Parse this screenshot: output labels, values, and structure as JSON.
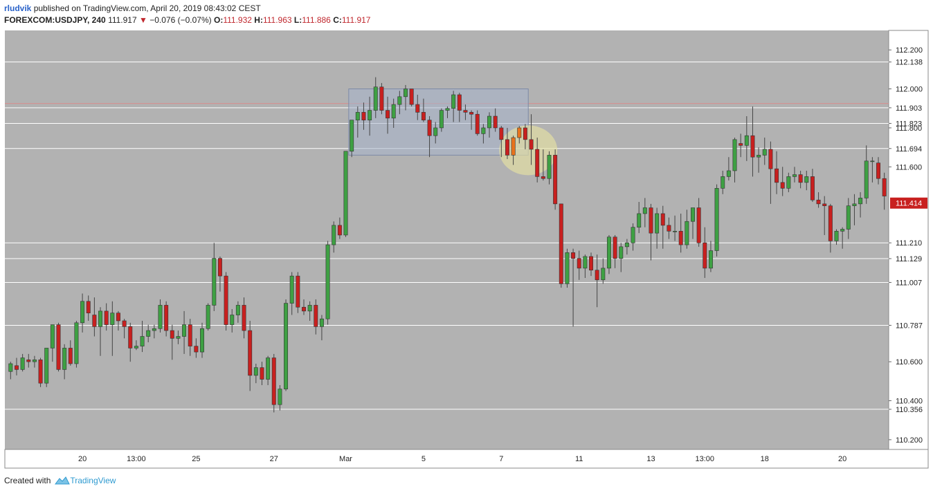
{
  "header": {
    "author": "rludvik",
    "published_text": "published on TradingView.com, April 20, 2019 08:43:02 CEST",
    "symbol": "FOREXCOM:USDJPY, 240",
    "last": "111.917",
    "change": "−0.076 (−0.07%)",
    "open_label": "O:",
    "open": "111.932",
    "high_label": "H:",
    "high": "111.963",
    "low_label": "L:",
    "low": "111.886",
    "close_label": "C:",
    "close": "111.917"
  },
  "footer": {
    "created_with": "Created with",
    "brand": "TradingView"
  },
  "colors": {
    "background": "#b2b2b2",
    "up": "#3ea043",
    "down": "#c8201f",
    "orange": "#e8731c",
    "axis_bg": "#ffffff",
    "price_tag": "#c8201f",
    "hline": "#ffffff",
    "red_hline": "#d98a8a",
    "box_fill": "#a8b5cc",
    "circle_fill": "#e6e2a3"
  },
  "chart_data": {
    "type": "candlestick",
    "ylim": [
      110.15,
      112.3
    ],
    "y_ticks": [
      "112.200",
      "112.000",
      "111.800",
      "111.600",
      "110.600",
      "110.400",
      "110.200"
    ],
    "horizontal_levels": [
      "112.138",
      "111.903",
      "111.823",
      "111.694",
      "111.210",
      "111.129",
      "111.007",
      "110.787",
      "110.356"
    ],
    "resistance_level": 111.925,
    "current_price": "111.414",
    "x_labels": [
      {
        "label": "20",
        "bar": 12
      },
      {
        "label": "13:00",
        "bar": 21
      },
      {
        "label": "25",
        "bar": 31
      },
      {
        "label": "27",
        "bar": 44
      },
      {
        "label": "Mar",
        "bar": 56
      },
      {
        "label": "5",
        "bar": 69
      },
      {
        "label": "7",
        "bar": 82
      },
      {
        "label": "11",
        "bar": 95
      },
      {
        "label": "13",
        "bar": 107
      },
      {
        "label": "13:00",
        "bar": 116
      },
      {
        "label": "18",
        "bar": 126
      },
      {
        "label": "20",
        "bar": 139
      }
    ],
    "candles": [
      [
        110.55,
        110.6,
        110.51,
        110.59
      ],
      [
        110.58,
        110.62,
        110.53,
        110.56
      ],
      [
        110.56,
        110.64,
        110.55,
        110.62
      ],
      [
        110.61,
        110.64,
        110.57,
        110.6
      ],
      [
        110.6,
        110.63,
        110.57,
        110.61
      ],
      [
        110.61,
        110.62,
        110.47,
        110.49
      ],
      [
        110.49,
        110.67,
        110.47,
        110.67
      ],
      [
        110.67,
        110.79,
        110.6,
        110.79
      ],
      [
        110.79,
        110.8,
        110.55,
        110.56
      ],
      [
        110.56,
        110.69,
        110.51,
        110.67
      ],
      [
        110.67,
        110.71,
        110.58,
        110.59
      ],
      [
        110.59,
        110.81,
        110.57,
        110.8
      ],
      [
        110.8,
        110.95,
        110.75,
        110.91
      ],
      [
        110.91,
        110.94,
        110.81,
        110.85
      ],
      [
        110.84,
        110.93,
        110.73,
        110.78
      ],
      [
        110.78,
        110.88,
        110.63,
        110.86
      ],
      [
        110.86,
        110.9,
        110.76,
        110.79
      ],
      [
        110.79,
        110.91,
        110.63,
        110.85
      ],
      [
        110.85,
        110.86,
        110.76,
        110.81
      ],
      [
        110.81,
        110.82,
        110.72,
        110.78
      ],
      [
        110.78,
        110.8,
        110.6,
        110.67
      ],
      [
        110.67,
        110.71,
        110.66,
        110.68
      ],
      [
        110.68,
        110.81,
        110.65,
        110.73
      ],
      [
        110.73,
        110.79,
        110.7,
        110.76
      ],
      [
        110.76,
        110.79,
        110.72,
        110.77
      ],
      [
        110.77,
        110.92,
        110.75,
        110.89
      ],
      [
        110.89,
        110.91,
        110.73,
        110.76
      ],
      [
        110.76,
        110.79,
        110.61,
        110.72
      ],
      [
        110.72,
        110.76,
        110.69,
        110.73
      ],
      [
        110.73,
        110.86,
        110.64,
        110.79
      ],
      [
        110.79,
        110.82,
        110.63,
        110.68
      ],
      [
        110.68,
        110.72,
        110.62,
        110.65
      ],
      [
        110.65,
        110.8,
        110.62,
        110.77
      ],
      [
        110.77,
        110.9,
        110.76,
        110.89
      ],
      [
        110.89,
        111.21,
        110.86,
        111.13
      ],
      [
        111.13,
        111.14,
        110.96,
        111.04
      ],
      [
        111.04,
        111.06,
        110.76,
        110.79
      ],
      [
        110.79,
        110.87,
        110.75,
        110.84
      ],
      [
        110.84,
        110.91,
        110.8,
        110.89
      ],
      [
        110.89,
        110.93,
        110.72,
        110.76
      ],
      [
        110.76,
        110.81,
        110.45,
        110.53
      ],
      [
        110.53,
        110.59,
        110.49,
        110.57
      ],
      [
        110.57,
        110.6,
        110.48,
        110.51
      ],
      [
        110.51,
        110.63,
        110.48,
        110.62
      ],
      [
        110.62,
        110.64,
        110.34,
        110.38
      ],
      [
        110.38,
        110.48,
        110.35,
        110.46
      ],
      [
        110.46,
        110.92,
        110.45,
        110.9
      ],
      [
        110.9,
        111.06,
        110.84,
        111.04
      ],
      [
        111.04,
        111.06,
        110.85,
        110.88
      ],
      [
        110.88,
        110.92,
        110.84,
        110.86
      ],
      [
        110.86,
        110.91,
        110.81,
        110.89
      ],
      [
        110.89,
        110.92,
        110.74,
        110.78
      ],
      [
        110.78,
        110.84,
        110.71,
        110.82
      ],
      [
        110.82,
        111.22,
        110.79,
        111.2
      ],
      [
        111.2,
        111.32,
        111.16,
        111.3
      ],
      [
        111.3,
        111.34,
        111.23,
        111.25
      ],
      [
        111.25,
        111.68,
        111.24,
        111.68
      ],
      [
        111.68,
        111.84,
        111.65,
        111.84
      ],
      [
        111.84,
        111.91,
        111.75,
        111.88
      ],
      [
        111.88,
        111.93,
        111.79,
        111.84
      ],
      [
        111.84,
        111.96,
        111.76,
        111.89
      ],
      [
        111.89,
        112.06,
        111.85,
        112.01
      ],
      [
        112.01,
        112.03,
        111.87,
        111.89
      ],
      [
        111.89,
        111.96,
        111.77,
        111.85
      ],
      [
        111.85,
        111.95,
        111.8,
        111.92
      ],
      [
        111.92,
        111.99,
        111.87,
        111.96
      ],
      [
        111.96,
        112.02,
        111.89,
        112.0
      ],
      [
        112.0,
        112.0,
        111.91,
        111.92
      ],
      [
        111.92,
        111.97,
        111.84,
        111.88
      ],
      [
        111.88,
        111.95,
        111.83,
        111.84
      ],
      [
        111.84,
        111.86,
        111.65,
        111.76
      ],
      [
        111.76,
        111.83,
        111.72,
        111.8
      ],
      [
        111.8,
        111.9,
        111.78,
        111.89
      ],
      [
        111.89,
        111.91,
        111.85,
        111.9
      ],
      [
        111.9,
        111.99,
        111.83,
        111.97
      ],
      [
        111.97,
        111.98,
        111.83,
        111.89
      ],
      [
        111.89,
        111.92,
        111.84,
        111.88
      ],
      [
        111.88,
        111.89,
        111.79,
        111.87
      ],
      [
        111.87,
        111.89,
        111.76,
        111.77
      ],
      [
        111.77,
        111.82,
        111.72,
        111.8
      ],
      [
        111.8,
        111.88,
        111.75,
        111.86
      ],
      [
        111.86,
        111.9,
        111.78,
        111.8
      ],
      [
        111.8,
        111.81,
        111.65,
        111.74
      ],
      [
        111.74,
        111.8,
        111.64,
        111.66
      ],
      [
        111.66,
        111.76,
        111.61,
        111.75
      ],
      [
        111.75,
        111.81,
        111.72,
        111.8
      ],
      [
        111.8,
        111.82,
        111.69,
        111.74
      ],
      [
        111.74,
        111.87,
        111.61,
        111.69
      ],
      [
        111.69,
        111.75,
        111.52,
        111.55
      ],
      [
        111.55,
        111.69,
        111.53,
        111.54
      ],
      [
        111.54,
        111.68,
        111.51,
        111.66
      ],
      [
        111.66,
        111.69,
        111.38,
        111.41
      ],
      [
        111.41,
        111.41,
        110.98,
        111.0
      ],
      [
        111.0,
        111.18,
        110.98,
        111.16
      ],
      [
        111.16,
        111.18,
        110.78,
        111.13
      ],
      [
        111.13,
        111.17,
        111.02,
        111.08
      ],
      [
        111.08,
        111.15,
        111.03,
        111.14
      ],
      [
        111.14,
        111.16,
        111.04,
        111.07
      ],
      [
        111.07,
        111.15,
        110.88,
        111.02
      ],
      [
        111.02,
        111.13,
        111.0,
        111.08
      ],
      [
        111.08,
        111.25,
        111.05,
        111.24
      ],
      [
        111.24,
        111.25,
        111.08,
        111.13
      ],
      [
        111.13,
        111.21,
        111.06,
        111.19
      ],
      [
        111.19,
        111.23,
        111.15,
        111.21
      ],
      [
        111.21,
        111.31,
        111.17,
        111.29
      ],
      [
        111.29,
        111.42,
        111.26,
        111.36
      ],
      [
        111.36,
        111.44,
        111.29,
        111.39
      ],
      [
        111.39,
        111.41,
        111.12,
        111.26
      ],
      [
        111.26,
        111.39,
        111.18,
        111.36
      ],
      [
        111.36,
        111.4,
        111.18,
        111.3
      ],
      [
        111.3,
        111.34,
        111.23,
        111.27
      ],
      [
        111.27,
        111.35,
        111.22,
        111.27
      ],
      [
        111.27,
        111.36,
        111.16,
        111.2
      ],
      [
        111.2,
        111.38,
        111.18,
        111.32
      ],
      [
        111.32,
        111.38,
        111.23,
        111.39
      ],
      [
        111.39,
        111.44,
        111.19,
        111.21
      ],
      [
        111.21,
        111.29,
        111.03,
        111.08
      ],
      [
        111.08,
        111.22,
        111.06,
        111.17
      ],
      [
        111.17,
        111.51,
        111.14,
        111.49
      ],
      [
        111.49,
        111.58,
        111.46,
        111.55
      ],
      [
        111.55,
        111.65,
        111.53,
        111.58
      ],
      [
        111.58,
        111.75,
        111.52,
        111.74
      ],
      [
        111.72,
        111.77,
        111.65,
        111.71
      ],
      [
        111.71,
        111.86,
        111.63,
        111.76
      ],
      [
        111.76,
        111.91,
        111.55,
        111.65
      ],
      [
        111.65,
        111.7,
        111.57,
        111.66
      ],
      [
        111.66,
        111.75,
        111.61,
        111.69
      ],
      [
        111.69,
        111.73,
        111.41,
        111.59
      ],
      [
        111.59,
        111.68,
        111.46,
        111.52
      ],
      [
        111.52,
        111.6,
        111.45,
        111.49
      ],
      [
        111.49,
        111.57,
        111.47,
        111.55
      ],
      [
        111.55,
        111.6,
        111.52,
        111.56
      ],
      [
        111.56,
        111.58,
        111.49,
        111.52
      ],
      [
        111.52,
        111.58,
        111.48,
        111.55
      ],
      [
        111.55,
        111.59,
        111.42,
        111.43
      ],
      [
        111.43,
        111.47,
        111.39,
        111.41
      ],
      [
        111.41,
        111.45,
        111.25,
        111.4
      ],
      [
        111.4,
        111.41,
        111.16,
        111.22
      ],
      [
        111.22,
        111.28,
        111.2,
        111.27
      ],
      [
        111.27,
        111.29,
        111.18,
        111.28
      ],
      [
        111.28,
        111.44,
        111.23,
        111.4
      ],
      [
        111.4,
        111.46,
        111.3,
        111.41
      ],
      [
        111.41,
        111.47,
        111.34,
        111.44
      ],
      [
        111.44,
        111.71,
        111.41,
        111.63
      ],
      [
        111.63,
        111.65,
        111.52,
        111.63
      ],
      [
        111.62,
        111.65,
        111.51,
        111.54
      ],
      [
        111.54,
        111.57,
        111.38,
        111.45
      ]
    ],
    "highlight_box": {
      "bar_start": 57,
      "bar_end": 86,
      "price_top": 112.0,
      "price_bottom": 111.66
    },
    "highlight_circle": {
      "bar_center": 86.5,
      "price_center": 111.685
    },
    "orange_bars": [
      84,
      85
    ]
  }
}
